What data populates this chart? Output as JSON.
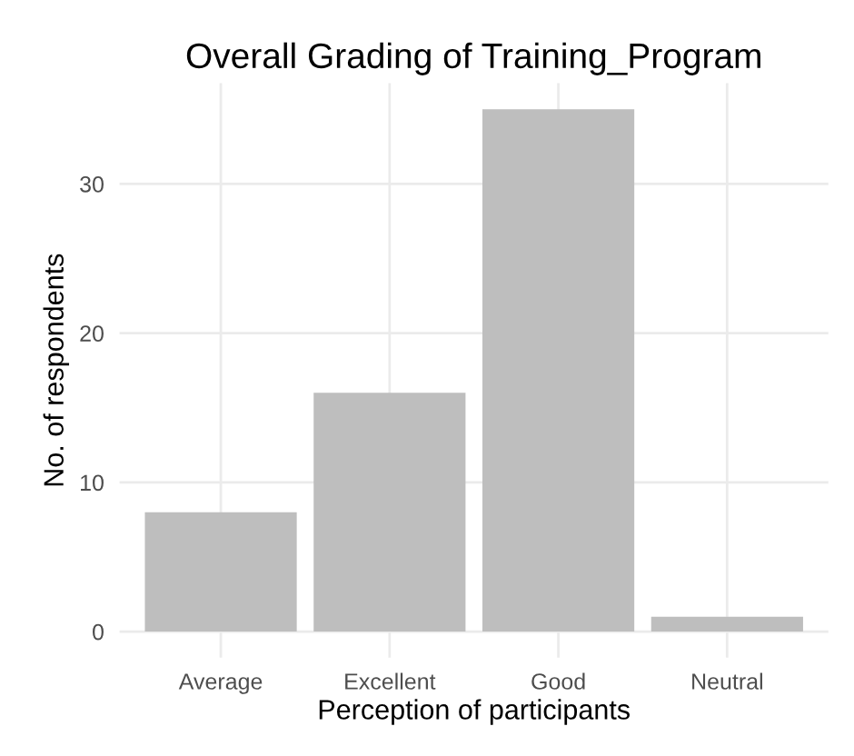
{
  "chart_data": {
    "type": "bar",
    "title": "Overall Grading of Training_Program",
    "xlabel": "Perception of participants",
    "ylabel": "No. of respondents",
    "categories": [
      "Average",
      "Excellent",
      "Good",
      "Neutral"
    ],
    "values": [
      8,
      16,
      35,
      1
    ],
    "color": "#bebebe",
    "ylim": [
      -1.75,
      36.75
    ],
    "yticks": [
      0,
      10,
      20,
      30
    ],
    "grid": true,
    "legend": false
  }
}
